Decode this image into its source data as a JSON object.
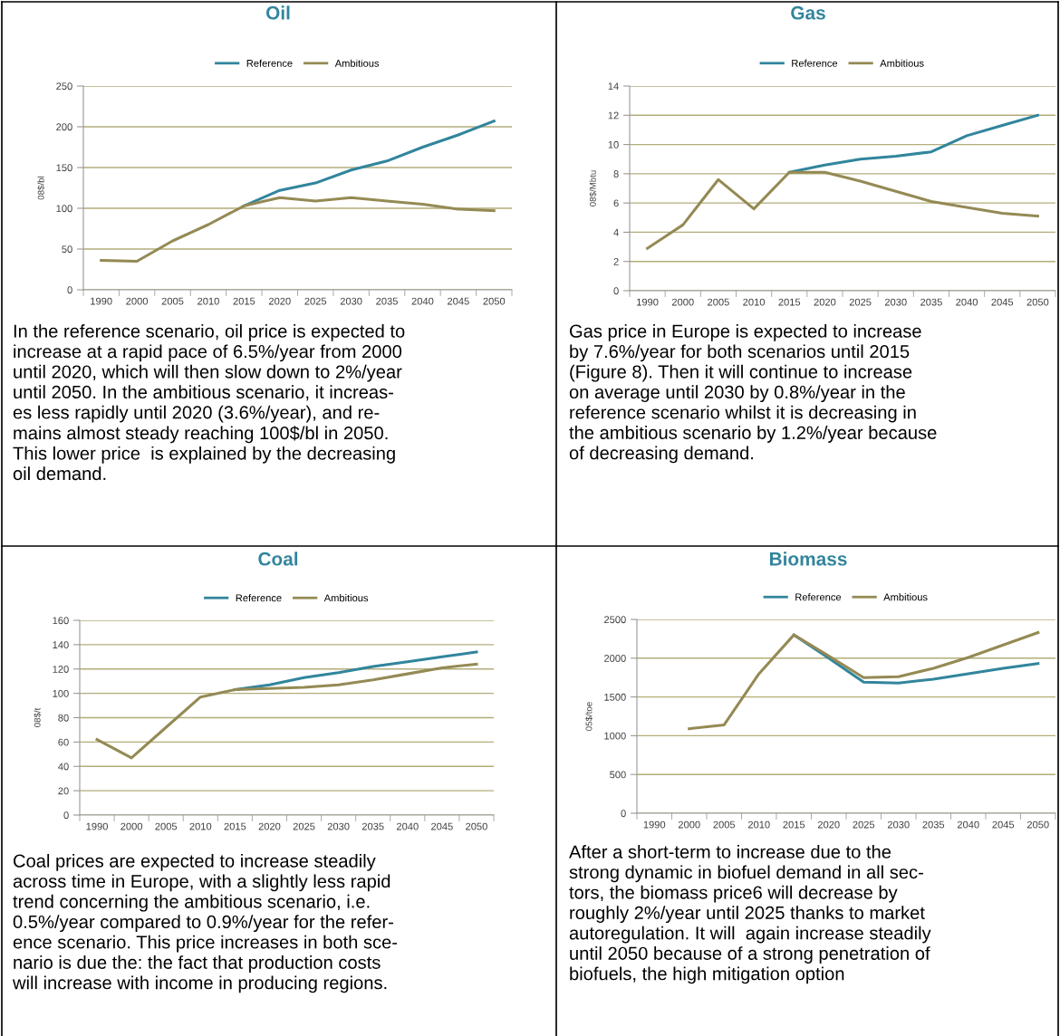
{
  "chart_data": [
    {
      "type": "line",
      "title": "Oil",
      "ylabel": "08$/bl",
      "categories": [
        "1990",
        "2000",
        "2005",
        "2010",
        "2015",
        "2020",
        "2025",
        "2030",
        "2035",
        "2040",
        "2045",
        "2050"
      ],
      "series": [
        {
          "name": "Reference",
          "color": "#31859c",
          "values": [
            null,
            null,
            null,
            null,
            103,
            122,
            131,
            147,
            158,
            175,
            190,
            207
          ]
        },
        {
          "name": "Ambitious",
          "color": "#948a54",
          "values": [
            36,
            35,
            60,
            80,
            103,
            113,
            109,
            113,
            109,
            105,
            99,
            97
          ]
        }
      ],
      "ylim": [
        0,
        250
      ],
      "yticks": [
        0,
        50,
        100,
        150,
        200,
        250
      ],
      "grid": "y",
      "legend": "top",
      "annotations": [
        "In the reference scenario, oil price is expected to\nincrease at a rapid pace of 6.5%/year from 2000\nuntil 2020, which will then slow down to 2%/year\nuntil 2050. In the ambitious scenario, it increas-\nes less rapidly until 2020 (3.6%/year), and re-\nmains almost steady reaching 100$/bl in 2050.\nThis lower price  is explained by the decreasing\noil demand."
      ]
    },
    {
      "type": "line",
      "title": "Gas",
      "ylabel": "08$/Mbtu",
      "categories": [
        "1990",
        "2000",
        "2005",
        "2010",
        "2015",
        "2020",
        "2025",
        "2030",
        "2035",
        "2040",
        "2045",
        "2050"
      ],
      "series": [
        {
          "name": "Reference",
          "color": "#31859c",
          "values": [
            null,
            null,
            null,
            null,
            8.1,
            8.6,
            9.0,
            9.2,
            9.5,
            10.6,
            11.3,
            12.0
          ]
        },
        {
          "name": "Ambitious",
          "color": "#948a54",
          "values": [
            2.9,
            4.5,
            7.6,
            5.6,
            8.1,
            8.1,
            7.5,
            6.8,
            6.1,
            5.7,
            5.3,
            5.1
          ]
        }
      ],
      "ylim": [
        0,
        14
      ],
      "yticks": [
        0,
        2,
        4,
        6,
        8,
        10,
        12,
        14
      ],
      "grid": "y",
      "legend": "top",
      "annotations": [
        "Gas price in Europe is expected to increase\nby 7.6%/year for both scenarios until 2015\n(Figure 8). Then it will continue to increase\non average until 2030 by 0.8%/year in the\nreference scenario whilst it is decreasing in\nthe ambitious scenario by 1.2%/year because\nof decreasing demand."
      ]
    },
    {
      "type": "line",
      "title": "Coal",
      "ylabel": "08$/t",
      "categories": [
        "1990",
        "2000",
        "2005",
        "2010",
        "2015",
        "2020",
        "2025",
        "2030",
        "2035",
        "2040",
        "2045",
        "2050"
      ],
      "series": [
        {
          "name": "Reference",
          "color": "#31859c",
          "values": [
            null,
            null,
            null,
            null,
            103,
            107,
            113,
            117,
            122,
            126,
            130,
            134
          ]
        },
        {
          "name": "Ambitious",
          "color": "#948a54",
          "values": [
            62,
            47,
            72,
            97,
            103,
            104,
            105,
            107,
            111,
            116,
            121,
            124
          ]
        }
      ],
      "ylim": [
        0,
        160
      ],
      "yticks": [
        0,
        20,
        40,
        60,
        80,
        100,
        120,
        140,
        160
      ],
      "grid": "y",
      "legend": "top",
      "annotations": [
        "Coal prices are expected to increase steadily\nacross time in Europe, with a slightly less rapid\ntrend concerning the ambitious scenario, i.e.\n0.5%/year compared to 0.9%/year for the refer-\nence scenario. This price increases in both sce-\nnario is due the: the fact that production costs\nwill increase with income in producing regions."
      ]
    },
    {
      "type": "line",
      "title": "Biomass",
      "ylabel": "05$/toe",
      "categories": [
        "1990",
        "2000",
        "2005",
        "2010",
        "2015",
        "2020",
        "2025",
        "2030",
        "2035",
        "2040",
        "2045",
        "2050"
      ],
      "series": [
        {
          "name": "Reference",
          "color": "#31859c",
          "values": [
            null,
            null,
            null,
            null,
            2300,
            2000,
            1690,
            1680,
            1730,
            1800,
            1870,
            1930
          ]
        },
        {
          "name": "Ambitious",
          "color": "#948a54",
          "values": [
            null,
            1090,
            1140,
            1800,
            2300,
            2030,
            1750,
            1760,
            1870,
            2010,
            2170,
            2330
          ]
        }
      ],
      "ylim": [
        0,
        2500
      ],
      "yticks": [
        0,
        500,
        1000,
        1500,
        2000,
        2500
      ],
      "grid": "y",
      "legend": "top",
      "annotations": [
        "After a short-term to increase due to the\nstrong dynamic in biofuel demand in all sec-\ntors, the biomass price6 will decrease by\nroughly 2%/year until 2025 thanks to market\nautoregulation. It will  again increase steadily\nuntil 2050 because of a strong penetration of\nbiofuels, the high mitigation option"
      ]
    }
  ]
}
